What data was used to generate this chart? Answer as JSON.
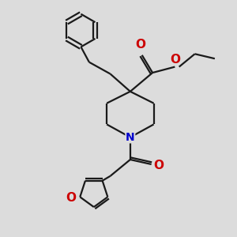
{
  "bg_color": "#dcdcdc",
  "bond_color": "#1a1a1a",
  "N_color": "#0000cc",
  "O_color": "#cc0000",
  "line_width": 1.6,
  "fig_size": [
    3.0,
    3.0
  ],
  "dpi": 100,
  "xlim": [
    0,
    10
  ],
  "ylim": [
    0,
    10
  ]
}
